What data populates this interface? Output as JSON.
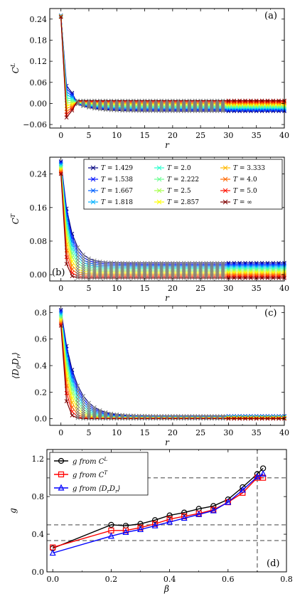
{
  "figure": {
    "background": "#ffffff"
  },
  "chart_data": [
    {
      "id": "a",
      "type": "line",
      "panel_label": "(a)",
      "xlabel": "r",
      "ylabel": "C^L",
      "ylabel_main": "C",
      "ylabel_sup": "L",
      "xlim": [
        -2,
        40
      ],
      "ylim": [
        -0.07,
        0.27
      ],
      "xticks": [
        0,
        5,
        10,
        15,
        20,
        25,
        30,
        35,
        40
      ],
      "xtick_labels": [
        "0",
        "5",
        "10",
        "15",
        "20",
        "25",
        "30",
        "35",
        "40"
      ],
      "yticks": [
        -0.06,
        0.0,
        0.06,
        0.12,
        0.18,
        0.24
      ],
      "ytick_labels": [
        "−0.06",
        "0.00",
        "0.06",
        "0.12",
        "0.18",
        "0.24"
      ],
      "marker": "x",
      "overlay_color": "#7f7f7f",
      "curve_model": {
        "mode": "longitudinal",
        "r0": 0.25,
        "r1_low": -0.04,
        "r1_high": 0.05,
        "tail_low": -0.022,
        "tail_high": 0.008
      },
      "series": [
        {
          "T": "1.429",
          "color": "#00007f"
        },
        {
          "T": "1.538",
          "color": "#0010ff"
        },
        {
          "T": "1.667",
          "color": "#0060ff"
        },
        {
          "T": "1.818",
          "color": "#00b0ff"
        },
        {
          "T": "2.0",
          "color": "#29ffce"
        },
        {
          "T": "2.222",
          "color": "#68ff8f"
        },
        {
          "T": "2.5",
          "color": "#a8ff4e"
        },
        {
          "T": "2.857",
          "color": "#ffff00"
        },
        {
          "T": "3.333",
          "color": "#ffb900"
        },
        {
          "T": "4.0",
          "color": "#ff6800"
        },
        {
          "T": "5.0",
          "color": "#ff1200"
        },
        {
          "T": "∞",
          "color": "#7f0000"
        }
      ]
    },
    {
      "id": "b",
      "type": "line",
      "panel_label": "(b)",
      "xlabel": "r",
      "ylabel": "C^T",
      "ylabel_main": "C",
      "ylabel_sup": "T",
      "xlim": [
        -2,
        40
      ],
      "ylim": [
        -0.015,
        0.28
      ],
      "xticks": [
        0,
        5,
        10,
        15,
        20,
        25,
        30,
        35,
        40
      ],
      "xtick_labels": [
        "0",
        "5",
        "10",
        "15",
        "20",
        "25",
        "30",
        "35",
        "40"
      ],
      "yticks": [
        0.0,
        0.08,
        0.16,
        0.24
      ],
      "ytick_labels": [
        "0.00",
        "0.08",
        "0.16",
        "0.24"
      ],
      "marker": "x",
      "overlay_color": "#7f7f7f",
      "legend_position": "top-right",
      "legend_prefix": "T = ",
      "curve_model": {
        "mode": "decay",
        "r0_low": 0.24,
        "r0_high": 0.27,
        "tail_low": -0.008,
        "tail_high": 0.028,
        "decay_low": 0.5,
        "decay_high": 1.6
      },
      "series": [
        {
          "T": "1.429",
          "color": "#00007f"
        },
        {
          "T": "1.538",
          "color": "#0010ff"
        },
        {
          "T": "1.667",
          "color": "#0060ff"
        },
        {
          "T": "1.818",
          "color": "#00b0ff"
        },
        {
          "T": "2.0",
          "color": "#29ffce"
        },
        {
          "T": "2.222",
          "color": "#68ff8f"
        },
        {
          "T": "2.5",
          "color": "#a8ff4e"
        },
        {
          "T": "2.857",
          "color": "#ffff00"
        },
        {
          "T": "3.333",
          "color": "#ffb900"
        },
        {
          "T": "4.0",
          "color": "#ff6800"
        },
        {
          "T": "5.0",
          "color": "#ff1200"
        },
        {
          "T": "∞",
          "color": "#7f0000"
        }
      ]
    },
    {
      "id": "c",
      "type": "line",
      "panel_label": "(c)",
      "xlabel": "r",
      "ylabel": "⟨D0Dr⟩",
      "ylabel_parts": [
        "⟨D",
        "0",
        "D",
        "r",
        "⟩"
      ],
      "xlim": [
        -2,
        40
      ],
      "ylim": [
        -0.05,
        0.85
      ],
      "xticks": [
        0,
        5,
        10,
        15,
        20,
        25,
        30,
        35,
        40
      ],
      "xtick_labels": [
        "0",
        "5",
        "10",
        "15",
        "20",
        "25",
        "30",
        "35",
        "40"
      ],
      "yticks": [
        0.0,
        0.2,
        0.4,
        0.6,
        0.8
      ],
      "ytick_labels": [
        "0.0",
        "0.2",
        "0.4",
        "0.6",
        "0.8"
      ],
      "marker": "x",
      "overlay_color": "#7f7f7f",
      "curve_model": {
        "mode": "decay",
        "r0_low": 0.7,
        "r0_high": 0.82,
        "tail_low": 0.0,
        "tail_high": 0.02,
        "decay_low": 0.6,
        "decay_high": 2.4
      },
      "series": [
        {
          "T": "1.429",
          "color": "#00007f"
        },
        {
          "T": "1.538",
          "color": "#0010ff"
        },
        {
          "T": "1.667",
          "color": "#0060ff"
        },
        {
          "T": "1.818",
          "color": "#00b0ff"
        },
        {
          "T": "2.0",
          "color": "#29ffce"
        },
        {
          "T": "2.222",
          "color": "#68ff8f"
        },
        {
          "T": "2.5",
          "color": "#a8ff4e"
        },
        {
          "T": "2.857",
          "color": "#ffff00"
        },
        {
          "T": "3.333",
          "color": "#ffb900"
        },
        {
          "T": "4.0",
          "color": "#ff6800"
        },
        {
          "T": "5.0",
          "color": "#ff1200"
        },
        {
          "T": "∞",
          "color": "#7f0000"
        }
      ]
    },
    {
      "id": "d",
      "type": "line",
      "panel_label": "(d)",
      "xlabel": "β",
      "ylabel": "g",
      "xlim": [
        -0.02,
        0.8
      ],
      "ylim": [
        0.0,
        1.3
      ],
      "xticks": [
        0.0,
        0.2,
        0.4,
        0.6,
        0.8
      ],
      "xtick_labels": [
        "0.0",
        "0.2",
        "0.4",
        "0.6",
        "0.8"
      ],
      "yticks": [
        0.0,
        0.4,
        0.8,
        1.2
      ],
      "ytick_labels": [
        "0.0",
        "0.4",
        "0.8",
        "1.2"
      ],
      "legend_position": "top-left",
      "reference_lines": {
        "horizontal": [
          1.0,
          0.5,
          0.333
        ],
        "vertical": [
          0.7
        ],
        "color": "#808080"
      },
      "series": [
        {
          "name": "g  from C^L",
          "legend_parts": [
            "g  from C",
            "L"
          ],
          "color": "#000000",
          "marker": "circle",
          "x": [
            0.0,
            0.2,
            0.25,
            0.3,
            0.35,
            0.4,
            0.45,
            0.5,
            0.55,
            0.6,
            0.65,
            0.7,
            0.72
          ],
          "y": [
            0.25,
            0.5,
            0.49,
            0.51,
            0.55,
            0.6,
            0.63,
            0.67,
            0.7,
            0.77,
            0.9,
            1.04,
            1.1
          ]
        },
        {
          "name": "g  from C^T",
          "legend_parts": [
            "g  from C",
            "T"
          ],
          "color": "#ff0000",
          "marker": "square",
          "x": [
            0.0,
            0.2,
            0.25,
            0.3,
            0.35,
            0.4,
            0.45,
            0.5,
            0.55,
            0.6,
            0.65,
            0.7,
            0.72
          ],
          "y": [
            0.26,
            0.44,
            0.44,
            0.47,
            0.51,
            0.56,
            0.59,
            0.62,
            0.66,
            0.74,
            0.84,
            1.0,
            1.0
          ]
        },
        {
          "name": "g  from ⟨DrDr⟩",
          "legend_parts": [
            "g  from ⟨D",
            "r",
            "D",
            "r",
            "⟩"
          ],
          "color": "#0000ff",
          "marker": "triangle",
          "x": [
            0.0,
            0.2,
            0.25,
            0.3,
            0.35,
            0.4,
            0.45,
            0.5,
            0.55,
            0.6,
            0.65,
            0.7,
            0.72
          ],
          "y": [
            0.2,
            0.38,
            0.42,
            0.45,
            0.49,
            0.53,
            0.57,
            0.61,
            0.65,
            0.74,
            0.87,
            1.01,
            1.04
          ]
        }
      ]
    }
  ]
}
